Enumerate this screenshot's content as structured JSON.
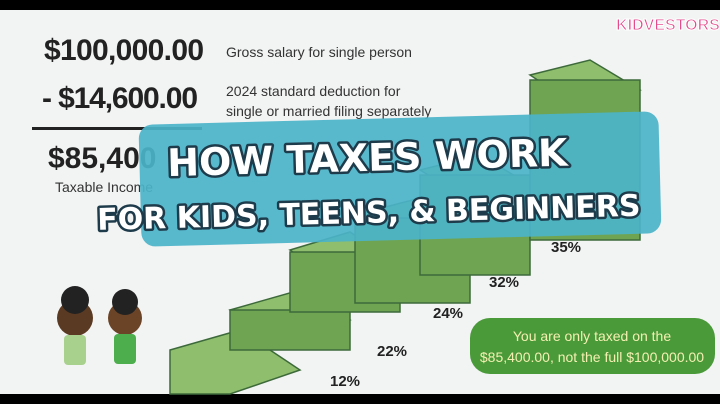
{
  "brand": "KIDVESTORS",
  "calculation": {
    "gross": "$100,000.00",
    "gross_note": "Gross salary for single person",
    "deduction": "- $14,600.00",
    "deduction_note": [
      "2024 standard deduction for",
      "single or married filing separately"
    ],
    "taxable": "$85,400",
    "taxable_note": "Taxable Income"
  },
  "banner": {
    "line1": "HOW TAXES WORK",
    "line2": "FOR KIDS, TEENS, & BEGINNERS"
  },
  "brackets": [
    "12%",
    "22%",
    "24%",
    "32%",
    "35%"
  ],
  "callout": [
    "You are only taxed on the",
    "$85,400.00, not the full $100,000.00"
  ]
}
